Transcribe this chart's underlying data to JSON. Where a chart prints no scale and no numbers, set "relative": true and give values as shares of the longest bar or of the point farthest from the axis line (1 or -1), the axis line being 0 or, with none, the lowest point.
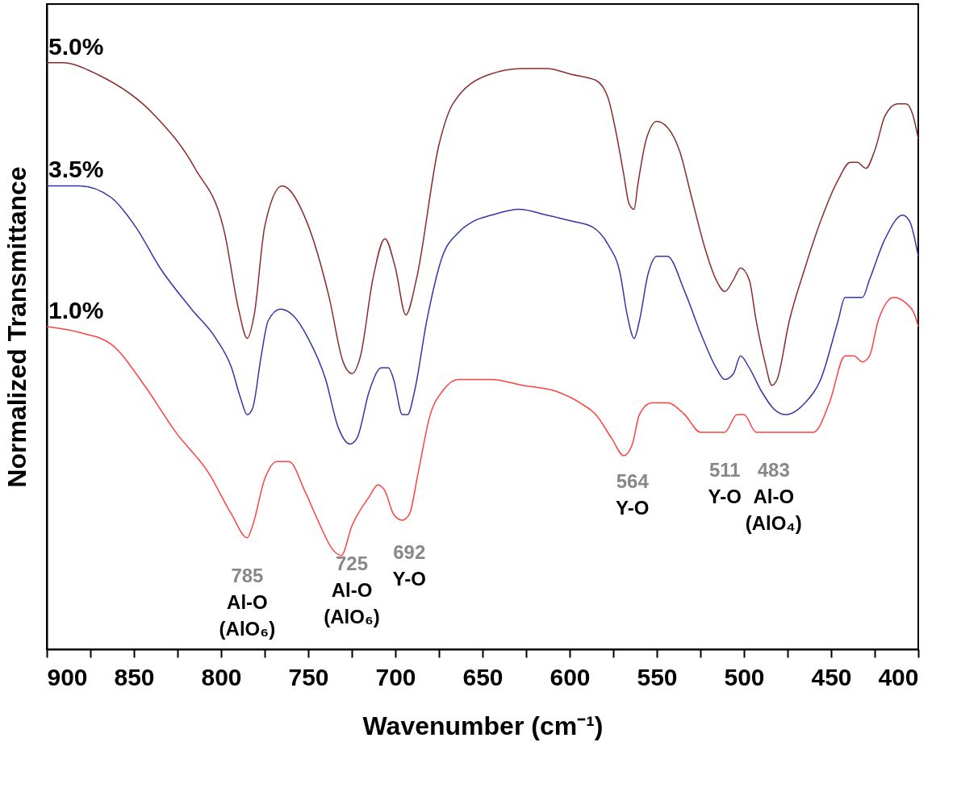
{
  "chart_data": {
    "type": "line",
    "relative": true,
    "xlabel": "Wavenumber (cm⁻¹)",
    "ylabel": "Normalized Transmittance",
    "xlim": [
      900,
      400
    ],
    "xticks": [
      900,
      {
        "value": 875,
        "label": null
      },
      850,
      {
        "value": 825,
        "label": null
      },
      800,
      {
        "value": 775,
        "label": null
      },
      750,
      {
        "value": 725,
        "label": null
      },
      700,
      {
        "value": 675,
        "label": null
      },
      650,
      {
        "value": 625,
        "label": null
      },
      600,
      {
        "value": 575,
        "label": null
      },
      550,
      {
        "value": 525,
        "label": null
      },
      500,
      {
        "value": 475,
        "label": null
      },
      450,
      {
        "value": 425,
        "label": null
      },
      400
    ],
    "grid": false,
    "legend": false,
    "line_style": "solid",
    "marker": "none",
    "series": [
      {
        "name": "5.0%",
        "color": "#8b2c2c",
        "x": [
          900,
          891,
          871,
          838,
          815,
          798,
          790,
          785,
          781,
          775,
          765,
          751,
          738,
          730,
          725,
          720,
          713,
          706,
          700,
          694,
          688,
          675,
          667,
          646,
          627,
          613,
          599,
          585,
          578,
          574,
          569,
          566,
          563,
          561,
          556,
          550,
          544,
          537,
          530,
          523,
          516,
          511,
          506,
          502,
          497,
          493,
          488,
          484,
          481,
          474,
          465,
          456,
          446,
          439,
          435,
          430,
          425,
          419,
          412,
          407,
          403,
          400
        ],
        "values": [
          1.0,
          1.0,
          0.98,
          0.91,
          0.82,
          0.71,
          0.58,
          0.53,
          0.57,
          0.72,
          0.79,
          0.73,
          0.6,
          0.49,
          0.47,
          0.5,
          0.63,
          0.7,
          0.65,
          0.57,
          0.63,
          0.86,
          0.93,
          0.98,
          0.99,
          0.99,
          0.98,
          0.97,
          0.94,
          0.89,
          0.81,
          0.76,
          0.75,
          0.79,
          0.87,
          0.9,
          0.89,
          0.85,
          0.77,
          0.69,
          0.63,
          0.61,
          0.63,
          0.65,
          0.63,
          0.56,
          0.49,
          0.45,
          0.46,
          0.56,
          0.65,
          0.73,
          0.8,
          0.83,
          0.83,
          0.82,
          0.85,
          0.91,
          0.93,
          0.93,
          0.91,
          0.87
        ]
      },
      {
        "name": "3.5%",
        "color": "#3535a8",
        "x": [
          900,
          881,
          863,
          849,
          835,
          817,
          803,
          794,
          789,
          785,
          782,
          777,
          773,
          766,
          759,
          750,
          740,
          733,
          726,
          722,
          715,
          708,
          704,
          701,
          696,
          693,
          689,
          682,
          673,
          664,
          655,
          645,
          629,
          613,
          599,
          587,
          578,
          571,
          567,
          563,
          560,
          555,
          550,
          544,
          534,
          525,
          516,
          511,
          506,
          502,
          497,
          490,
          483,
          476,
          465,
          456,
          446,
          442,
          437,
          432,
          428,
          419,
          409,
          405,
          400
        ],
        "values": [
          0.79,
          0.79,
          0.77,
          0.72,
          0.65,
          0.58,
          0.53,
          0.48,
          0.43,
          0.4,
          0.41,
          0.5,
          0.56,
          0.58,
          0.57,
          0.53,
          0.46,
          0.38,
          0.35,
          0.36,
          0.44,
          0.48,
          0.48,
          0.46,
          0.4,
          0.4,
          0.44,
          0.56,
          0.67,
          0.71,
          0.73,
          0.74,
          0.75,
          0.74,
          0.73,
          0.72,
          0.69,
          0.64,
          0.57,
          0.53,
          0.56,
          0.64,
          0.67,
          0.67,
          0.61,
          0.54,
          0.48,
          0.46,
          0.47,
          0.5,
          0.48,
          0.44,
          0.41,
          0.4,
          0.42,
          0.46,
          0.56,
          0.6,
          0.6,
          0.6,
          0.63,
          0.7,
          0.74,
          0.73,
          0.67
        ]
      },
      {
        "name": "1.0%",
        "color": "#ff4040",
        "x": [
          900,
          881,
          863,
          844,
          826,
          807,
          794,
          785,
          782,
          775,
          768,
          761,
          752,
          743,
          736,
          731,
          725,
          715,
          710,
          706,
          701,
          696,
          692,
          687,
          680,
          673,
          664,
          645,
          627,
          608,
          594,
          585,
          576,
          569,
          564,
          560,
          553,
          544,
          534,
          525,
          516,
          511,
          504,
          500,
          493,
          483,
          469,
          460,
          451,
          442,
          437,
          432,
          428,
          423,
          414,
          407,
          402,
          400
        ],
        "values": [
          0.55,
          0.54,
          0.52,
          0.45,
          0.37,
          0.3,
          0.23,
          0.19,
          0.21,
          0.29,
          0.32,
          0.32,
          0.27,
          0.21,
          0.17,
          0.16,
          0.21,
          0.26,
          0.28,
          0.27,
          0.23,
          0.22,
          0.23,
          0.3,
          0.4,
          0.44,
          0.46,
          0.46,
          0.45,
          0.44,
          0.42,
          0.4,
          0.36,
          0.33,
          0.35,
          0.4,
          0.42,
          0.42,
          0.4,
          0.37,
          0.37,
          0.37,
          0.4,
          0.4,
          0.37,
          0.37,
          0.37,
          0.37,
          0.42,
          0.5,
          0.5,
          0.49,
          0.5,
          0.56,
          0.6,
          0.59,
          0.57,
          0.55
        ]
      }
    ],
    "annotations": [
      {
        "text": "785\nAl-O\n(AlO₆)",
        "x": 785,
        "y": 0.19
      },
      {
        "text": "725\nAl-O\n(AlO₆)",
        "x": 725,
        "y": 0.21
      },
      {
        "text": "692\nY-O",
        "x": 692,
        "y": 0.23
      },
      {
        "text": "564\nY-O",
        "x": 564,
        "y": 0.35
      },
      {
        "text": "511\nY-O",
        "x": 511,
        "y": 0.37
      },
      {
        "text": "483\nAl-O\n(AlO₄)",
        "x": 483,
        "y": 0.37
      }
    ]
  }
}
